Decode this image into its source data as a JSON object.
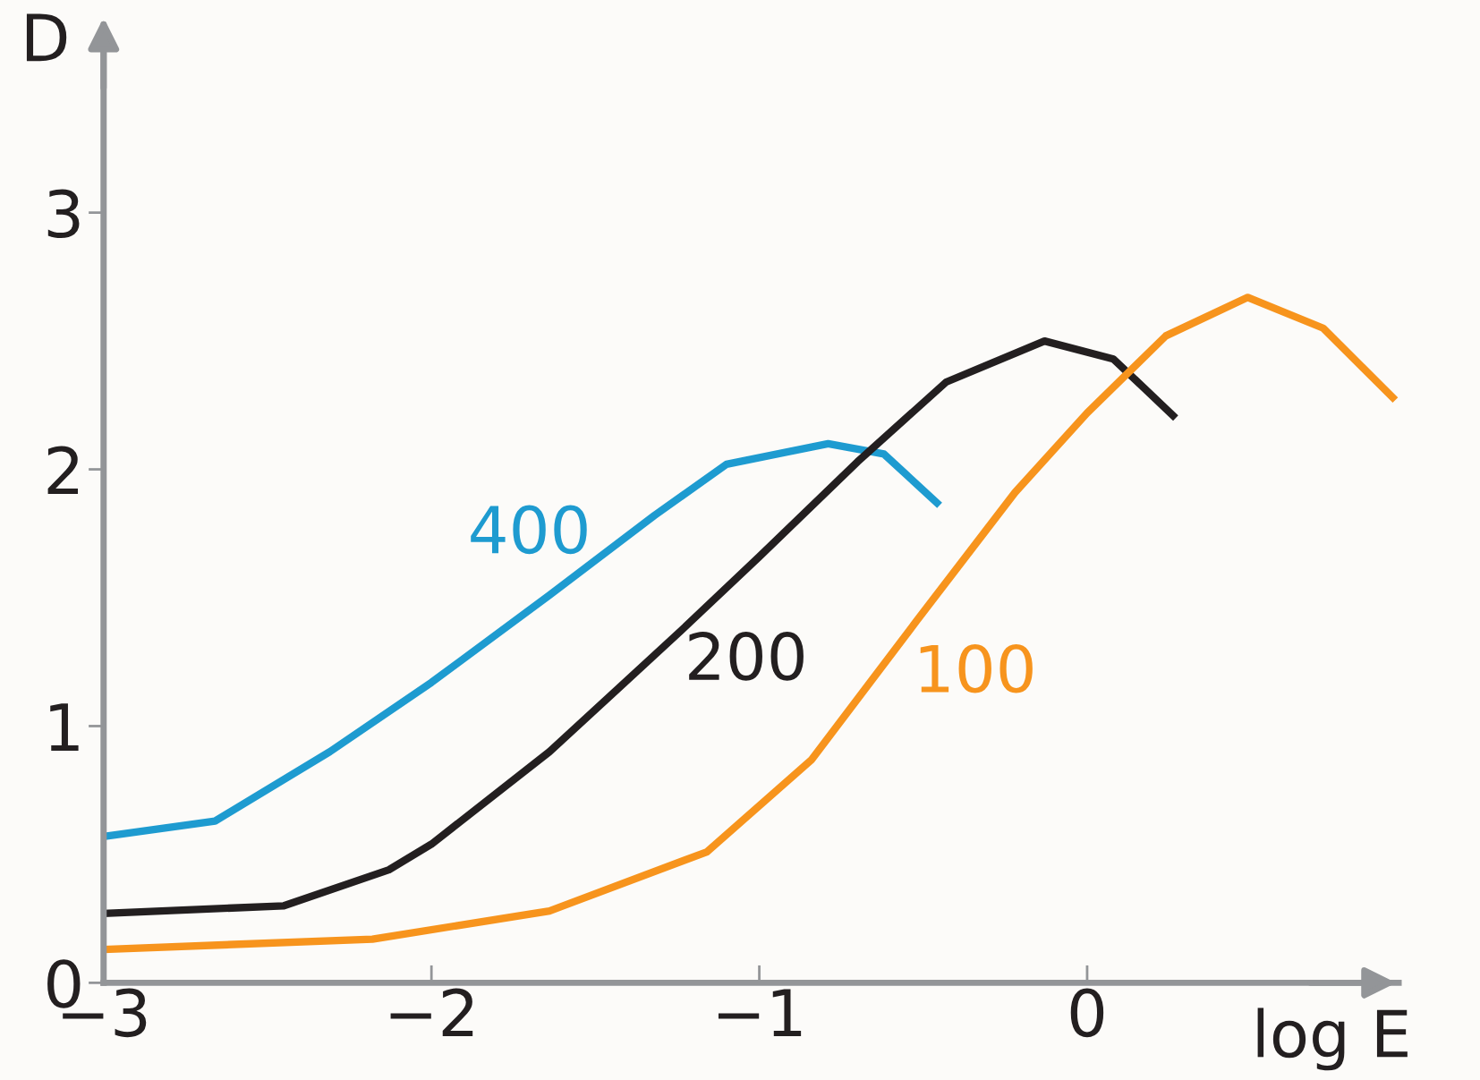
{
  "chart_data": {
    "type": "line",
    "xlabel": "log E",
    "ylabel": "D",
    "xlim": [
      -3,
      0.95
    ],
    "ylim": [
      0,
      3.66
    ],
    "xticks": [
      {
        "value": -3,
        "label": "−3"
      },
      {
        "value": -2,
        "label": "−2"
      },
      {
        "value": -1,
        "label": "−1"
      },
      0
    ],
    "yticks": [
      0,
      1,
      2,
      3
    ],
    "grid": false,
    "legend": false,
    "marker": "none",
    "line_style": "solid",
    "series": [
      {
        "name": "400",
        "color": "#1e9bd0",
        "x": [
          -3,
          -2.66,
          -2.31,
          -2,
          -1.64,
          -1.32,
          -1.1,
          -0.79,
          -0.62,
          -0.45
        ],
        "values": [
          0.57,
          0.63,
          0.9,
          1.17,
          1.51,
          1.82,
          2.02,
          2.1,
          2.06,
          1.86
        ]
      },
      {
        "name": "200",
        "color": "#231f20",
        "x": [
          -3,
          -2.45,
          -2.13,
          -2,
          -1.64,
          -1.24,
          -1,
          -0.7,
          -0.43,
          -0.13,
          0.08,
          0.27
        ],
        "values": [
          0.27,
          0.3,
          0.44,
          0.54,
          0.9,
          1.37,
          1.66,
          2.03,
          2.34,
          2.5,
          2.43,
          2.2
        ]
      },
      {
        "name": "100",
        "color": "#f7941d",
        "x": [
          -3,
          -2.18,
          -1.64,
          -1.16,
          -0.84,
          -0.52,
          -0.22,
          0,
          0.24,
          0.49,
          0.72,
          0.94
        ],
        "values": [
          0.13,
          0.17,
          0.28,
          0.51,
          0.87,
          1.41,
          1.91,
          2.22,
          2.52,
          2.67,
          2.55,
          2.27
        ]
      }
    ]
  }
}
